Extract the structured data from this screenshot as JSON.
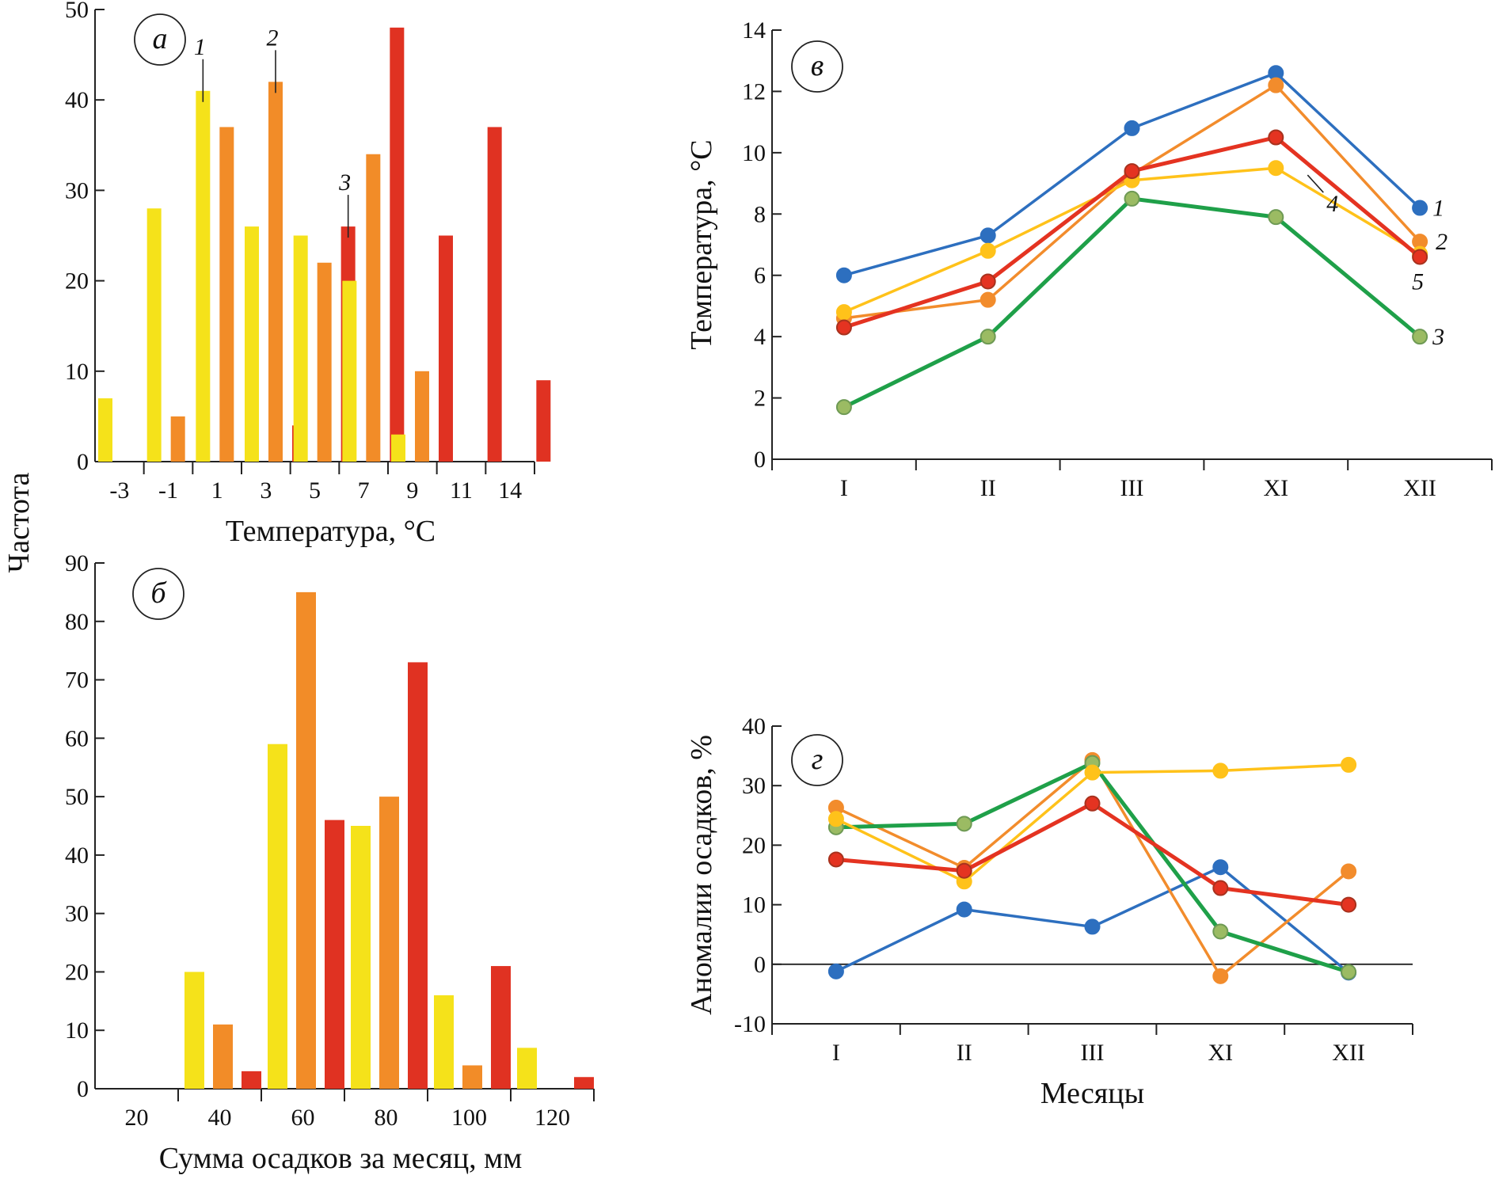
{
  "colors": {
    "yellow_bar": "#F5E21A",
    "orange_bar": "#F28C28",
    "red_bar": "#E03222",
    "blue": "#2D6FBF",
    "orange": "#F28C2C",
    "green": "#1FA049",
    "red": "#E43321",
    "yellow": "#FFC21A",
    "grey_marker": "#9BBB63",
    "axis": "#222222"
  },
  "shared": {
    "ylabel_left": "Частота"
  },
  "chart_data": [
    {
      "id": "a",
      "type": "bar",
      "panel_letter": "а",
      "xlabel": "Температура, °С",
      "ylim": [
        0,
        50
      ],
      "yticks": [
        0,
        10,
        20,
        30,
        40,
        50
      ],
      "categories": [
        "-3",
        "-1",
        "1",
        "3",
        "5",
        "7",
        "9",
        "11",
        "14"
      ],
      "series": [
        {
          "values": [
            7,
            28,
            41,
            26,
            25,
            20,
            3,
            null,
            null
          ]
        },
        {
          "values": [
            null,
            5,
            37,
            42,
            22,
            34,
            10,
            null,
            null
          ]
        },
        {
          "values": [
            null,
            null,
            null,
            4,
            26,
            48,
            25,
            37,
            9
          ]
        }
      ],
      "series_tags": [
        "1",
        "2",
        "3"
      ]
    },
    {
      "id": "b",
      "type": "bar",
      "panel_letter": "б",
      "xlabel": "Сумма осадков за месяц, мм",
      "ylim": [
        0,
        90
      ],
      "yticks": [
        0,
        10,
        20,
        30,
        40,
        50,
        60,
        70,
        80,
        90
      ],
      "categories": [
        "20",
        "40",
        "60",
        "80",
        "100",
        "120"
      ],
      "series": [
        {
          "values": [
            null,
            20,
            59,
            45,
            16,
            7
          ]
        },
        {
          "values": [
            null,
            11,
            85,
            50,
            4,
            null
          ]
        },
        {
          "values": [
            null,
            3,
            46,
            73,
            21,
            2
          ]
        }
      ]
    },
    {
      "id": "v",
      "type": "line",
      "panel_letter": "в",
      "ylabel": "Температура, °С",
      "ylim": [
        0,
        14
      ],
      "yticks": [
        0,
        2,
        4,
        6,
        8,
        10,
        12,
        14
      ],
      "categories": [
        "I",
        "II",
        "III",
        "XI",
        "XII"
      ],
      "series": [
        {
          "name": "1",
          "color": "blue",
          "values": [
            6.0,
            7.3,
            10.8,
            12.6,
            8.2
          ]
        },
        {
          "name": "2",
          "color": "orange",
          "values": [
            4.6,
            5.2,
            9.3,
            12.2,
            7.1
          ]
        },
        {
          "name": "3",
          "color": "green",
          "values": [
            1.7,
            4.0,
            8.5,
            7.9,
            4.0
          ]
        },
        {
          "name": "4",
          "color": "yellow",
          "values": [
            4.8,
            6.8,
            9.1,
            9.5,
            6.7
          ]
        },
        {
          "name": "5",
          "color": "red",
          "values": [
            4.3,
            5.8,
            9.4,
            10.5,
            6.6
          ]
        }
      ]
    },
    {
      "id": "g",
      "type": "line",
      "panel_letter": "г",
      "xlabel": "Месяцы",
      "ylabel": "Аномалии осадков, %",
      "ylim": [
        -10,
        40
      ],
      "yticks": [
        -10,
        0,
        10,
        20,
        30,
        40
      ],
      "categories": [
        "I",
        "II",
        "III",
        "XI",
        "XII"
      ],
      "series": [
        {
          "color": "blue",
          "values": [
            -1.2,
            9.2,
            6.3,
            16.3,
            -1.4
          ]
        },
        {
          "color": "orange",
          "values": [
            26.3,
            16.2,
            34.3,
            -2.0,
            15.6
          ]
        },
        {
          "color": "green",
          "values": [
            23.0,
            23.6,
            33.8,
            5.5,
            -1.3
          ]
        },
        {
          "color": "yellow",
          "values": [
            24.4,
            13.9,
            32.2,
            32.5,
            33.5
          ]
        },
        {
          "color": "red",
          "values": [
            17.6,
            15.7,
            27.0,
            12.8,
            10.0
          ]
        }
      ]
    }
  ]
}
